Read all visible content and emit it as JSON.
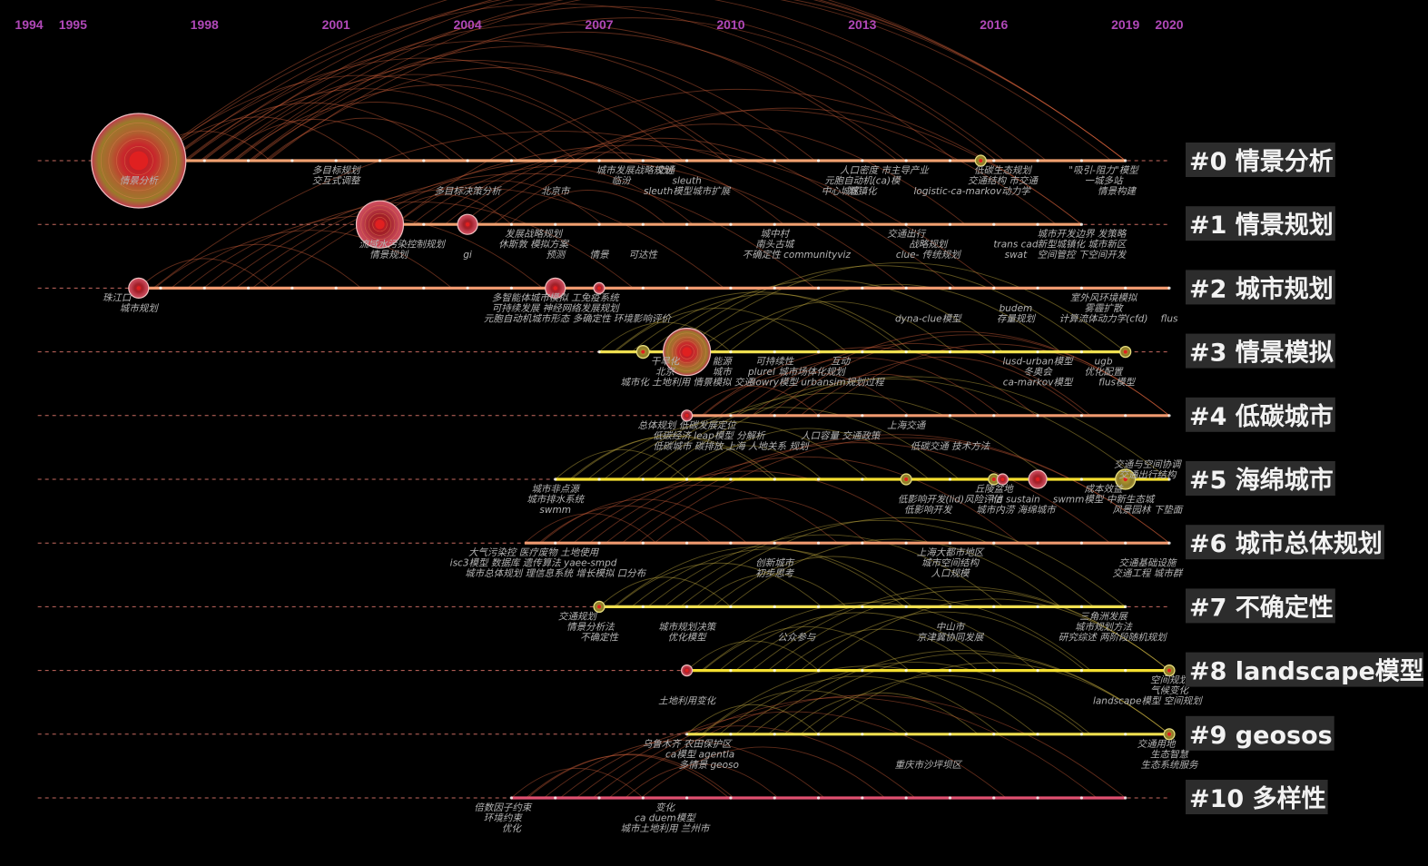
{
  "chart_data": {
    "type": "timeline",
    "x_range": [
      1994,
      2020
    ],
    "years": [
      "1994",
      "1995",
      "1998",
      "2001",
      "2004",
      "2007",
      "2010",
      "2013",
      "2016",
      "2019",
      "2020"
    ],
    "clusters": [
      {
        "id": 0,
        "label": "#0 情景分析",
        "start": 1994.2,
        "end": 2019,
        "nodes": [
          {
            "year": 1996.5,
            "size": 52,
            "kind": "big"
          },
          {
            "year": 2015.7,
            "size": 6,
            "kind": "gold"
          }
        ],
        "terms": [
          {
            "year": 1996.5,
            "row": 2,
            "text": "情景分析"
          },
          {
            "year": 2001.0,
            "row": 1,
            "text": "多目标规划"
          },
          {
            "year": 2001.0,
            "row": 2,
            "text": "交互式调整"
          },
          {
            "year": 2004.0,
            "row": 3,
            "text": "多目标决策分析"
          },
          {
            "year": 2007.8,
            "row": 1,
            "text": "城市发展战略规划"
          },
          {
            "year": 2008.5,
            "row": 1,
            "text": "交通"
          },
          {
            "year": 2007.5,
            "row": 2,
            "text": "临汾"
          },
          {
            "year": 2009.0,
            "row": 2,
            "text": "sleuth"
          },
          {
            "year": 2009.0,
            "row": 3,
            "text": "sleuth模型城市扩展"
          },
          {
            "year": 2006.0,
            "row": 3,
            "text": "北京市"
          },
          {
            "year": 2013.5,
            "row": 1,
            "text": "人口密度 市主导产业"
          },
          {
            "year": 2016.2,
            "row": 1,
            "text": "低碳生态规划"
          },
          {
            "year": 2013.0,
            "row": 2,
            "text": "元胞自动机(ca)模"
          },
          {
            "year": 2016.2,
            "row": 2,
            "text": "交通结构 市交通"
          },
          {
            "year": 2012.5,
            "row": 3,
            "text": "中心城区"
          },
          {
            "year": 2013.0,
            "row": 3,
            "text": "城镇化"
          },
          {
            "year": 2015.5,
            "row": 3,
            "text": "logistic-ca-markov动力学"
          },
          {
            "year": 2018.5,
            "row": 1,
            "text": "\"吸引-阻力\"模型"
          },
          {
            "year": 2018.5,
            "row": 2,
            "text": "一城多站"
          },
          {
            "year": 2018.8,
            "row": 3,
            "text": "情景构建"
          }
        ]
      },
      {
        "id": 1,
        "label": "#1 情景规划",
        "start": 1994.2,
        "end": 2018,
        "nodes": [
          {
            "year": 2002.0,
            "size": 26,
            "kind": "ring"
          },
          {
            "year": 2004.0,
            "size": 11,
            "kind": "ring"
          }
        ],
        "terms": [
          {
            "year": 2002.5,
            "row": 2,
            "text": "流域水污染控制规划"
          },
          {
            "year": 2002.2,
            "row": 3,
            "text": "情景规划"
          },
          {
            "year": 2004.0,
            "row": 3,
            "text": "gi"
          },
          {
            "year": 2005.5,
            "row": 1,
            "text": "发展战略规划"
          },
          {
            "year": 2005.5,
            "row": 2,
            "text": "休斯敦  模拟方案"
          },
          {
            "year": 2006.0,
            "row": 3,
            "text": "预测"
          },
          {
            "year": 2007.0,
            "row": 3,
            "text": "情景"
          },
          {
            "year": 2008.0,
            "row": 3,
            "text": "可达性"
          },
          {
            "year": 2011.0,
            "row": 1,
            "text": "城中村"
          },
          {
            "year": 2011.0,
            "row": 2,
            "text": "南头古城"
          },
          {
            "year": 2011.5,
            "row": 3,
            "text": "不确定性 communityviz"
          },
          {
            "year": 2014.0,
            "row": 1,
            "text": "交通出行"
          },
          {
            "year": 2014.5,
            "row": 2,
            "text": "战略规划"
          },
          {
            "year": 2014.5,
            "row": 3,
            "text": "clue-     传统规划"
          },
          {
            "year": 2016.5,
            "row": 2,
            "text": "trans cad"
          },
          {
            "year": 2016.5,
            "row": 3,
            "text": "swat"
          },
          {
            "year": 2018.0,
            "row": 1,
            "text": "城市开发边界 发策略"
          },
          {
            "year": 2018.0,
            "row": 2,
            "text": "新型城镇化 城市新区"
          },
          {
            "year": 2018.0,
            "row": 3,
            "text": "空间管控 下空间开发"
          }
        ]
      },
      {
        "id": 2,
        "label": "#2 城市规划",
        "start": 1994.2,
        "end": 2020,
        "nodes": [
          {
            "year": 1996.5,
            "size": 11,
            "kind": "ring"
          },
          {
            "year": 2006.0,
            "size": 11,
            "kind": "ring"
          },
          {
            "year": 2007.0,
            "size": 6,
            "kind": "ring"
          }
        ],
        "terms": [
          {
            "year": 1996.0,
            "row": 1,
            "text": "珠江口"
          },
          {
            "year": 1996.5,
            "row": 2,
            "text": "城市规划"
          },
          {
            "year": 2006.0,
            "row": 1,
            "text": "多智能体城市模拟 工免疫系统"
          },
          {
            "year": 2006.0,
            "row": 2,
            "text": "可持续发展 神经网络发展规划"
          },
          {
            "year": 2006.5,
            "row": 3,
            "text": "元胞自动机城市形态 多确定性 环境影响评价"
          },
          {
            "year": 2014.5,
            "row": 3,
            "text": "dyna-clue模型"
          },
          {
            "year": 2016.5,
            "row": 2,
            "text": "budem"
          },
          {
            "year": 2016.5,
            "row": 3,
            "text": "存量规划"
          },
          {
            "year": 2018.5,
            "row": 1,
            "text": "室外风环境模拟"
          },
          {
            "year": 2018.5,
            "row": 2,
            "text": "雾霾扩散"
          },
          {
            "year": 2018.5,
            "row": 3,
            "text": "计算流体动力学(cfd)"
          },
          {
            "year": 2020.0,
            "row": 3,
            "text": "flus"
          }
        ]
      },
      {
        "id": 3,
        "label": "#3 情景模拟",
        "start": 1994.2,
        "end": 2019,
        "nodes": [
          {
            "year": 2008.0,
            "size": 7,
            "kind": "gold"
          },
          {
            "year": 2009.0,
            "size": 26,
            "kind": "big"
          },
          {
            "year": 2019.0,
            "size": 6,
            "kind": "gold"
          }
        ],
        "terms": [
          {
            "year": 2008.5,
            "row": 1,
            "text": "干旱化"
          },
          {
            "year": 2008.5,
            "row": 2,
            "text": "北京"
          },
          {
            "year": 2009.8,
            "row": 1,
            "text": "能源"
          },
          {
            "year": 2009.8,
            "row": 2,
            "text": "城市"
          },
          {
            "year": 2009.0,
            "row": 3,
            "text": "城市化  土地利用 情景模拟  交通"
          },
          {
            "year": 2011.0,
            "row": 1,
            "text": "可持续性"
          },
          {
            "year": 2011.5,
            "row": 2,
            "text": "plurel 城市场体化规划"
          },
          {
            "year": 2012.0,
            "row": 3,
            "text": "lowry模型 urbansim规划过程"
          },
          {
            "year": 2012.5,
            "row": 1,
            "text": "互动"
          },
          {
            "year": 2017.0,
            "row": 1,
            "text": "lusd-urban模型"
          },
          {
            "year": 2017.0,
            "row": 2,
            "text": "冬奥会"
          },
          {
            "year": 2017.0,
            "row": 3,
            "text": "ca-markov模型"
          },
          {
            "year": 2018.5,
            "row": 1,
            "text": "ugb"
          },
          {
            "year": 2018.5,
            "row": 2,
            "text": "优化配置"
          },
          {
            "year": 2018.8,
            "row": 3,
            "text": "flus模型"
          }
        ]
      },
      {
        "id": 4,
        "label": "#4 低碳城市",
        "start": 1994.2,
        "end": 2020,
        "nodes": [
          {
            "year": 2009.0,
            "size": 6,
            "kind": "ring"
          }
        ],
        "terms": [
          {
            "year": 2009.0,
            "row": 1,
            "text": "总体规划   低碳发展定位"
          },
          {
            "year": 2009.5,
            "row": 2,
            "text": "低碳经济   leap模型 分解析"
          },
          {
            "year": 2010.0,
            "row": 3,
            "text": "低碳城市  碳排放  上海   人地关系  规划"
          },
          {
            "year": 2012.5,
            "row": 2,
            "text": "人口容量 交通政策"
          },
          {
            "year": 2014.0,
            "row": 1,
            "text": "上海交通"
          },
          {
            "year": 2015.0,
            "row": 3,
            "text": "低碳交通 技术方法"
          }
        ]
      },
      {
        "id": 5,
        "label": "#5 海绵城市",
        "start": 1994.2,
        "end": 2020,
        "nodes": [
          {
            "year": 2014.0,
            "size": 6,
            "kind": "gold"
          },
          {
            "year": 2016.0,
            "size": 6,
            "kind": "gold"
          },
          {
            "year": 2016.2,
            "size": 6,
            "kind": "ring"
          },
          {
            "year": 2017.0,
            "size": 10,
            "kind": "ring"
          },
          {
            "year": 2019.0,
            "size": 11,
            "kind": "gold"
          }
        ],
        "terms": [
          {
            "year": 2006.0,
            "row": 1,
            "text": "城市非点源"
          },
          {
            "year": 2006.0,
            "row": 2,
            "text": "城市排水系统"
          },
          {
            "year": 2006.0,
            "row": 3,
            "text": "swmm"
          },
          {
            "year": 2015.0,
            "row": 2,
            "text": "低影响开发(lid)风险评估"
          },
          {
            "year": 2014.5,
            "row": 3,
            "text": "低影响开发"
          },
          {
            "year": 2016.0,
            "row": 1,
            "text": "丘陵盆地"
          },
          {
            "year": 2016.5,
            "row": 2,
            "text": "lid  sustain"
          },
          {
            "year": 2016.5,
            "row": 3,
            "text": "城市内涝 海绵城市"
          },
          {
            "year": 2018.5,
            "row": 1,
            "text": "成本效益"
          },
          {
            "year": 2018.5,
            "row": 2,
            "text": "swmm模型  中新生态城"
          },
          {
            "year": 2019.5,
            "row": 3,
            "text": "风景园林  下垫面"
          },
          {
            "year": 2019.5,
            "row": -2,
            "text": "交通与空间协调"
          },
          {
            "year": 2019.5,
            "row": -1,
            "text": "交通出行结构"
          }
        ]
      },
      {
        "id": 6,
        "label": "#6 城市总体规划",
        "start": 1994.2,
        "end": 2020,
        "nodes": [],
        "terms": [
          {
            "year": 2005.5,
            "row": 1,
            "text": "大气污染控 医疗废物   土地使用"
          },
          {
            "year": 2005.5,
            "row": 2,
            "text": "isc3模型 数据库 遗传算法 yaee-smpd"
          },
          {
            "year": 2006.0,
            "row": 3,
            "text": "城市总体规划 理信息系统 增长模拟 口分布"
          },
          {
            "year": 2011.0,
            "row": 2,
            "text": "创新城市"
          },
          {
            "year": 2011.0,
            "row": 3,
            "text": "初步思考"
          },
          {
            "year": 2015.0,
            "row": 1,
            "text": "上海大都市地区"
          },
          {
            "year": 2015.0,
            "row": 2,
            "text": "城市空间结构"
          },
          {
            "year": 2015.0,
            "row": 3,
            "text": "人口规模"
          },
          {
            "year": 2019.5,
            "row": 2,
            "text": "交通基础设施"
          },
          {
            "year": 2019.5,
            "row": 3,
            "text": "交通工程  城市群"
          }
        ]
      },
      {
        "id": 7,
        "label": "#7 不确定性",
        "start": 1994.2,
        "end": 2019,
        "nodes": [
          {
            "year": 2007.0,
            "size": 6,
            "kind": "gold"
          }
        ],
        "terms": [
          {
            "year": 2006.5,
            "row": 1,
            "text": "交通规划"
          },
          {
            "year": 2006.8,
            "row": 2,
            "text": "情景分析法"
          },
          {
            "year": 2007.0,
            "row": 3,
            "text": "不确定性"
          },
          {
            "year": 2009.0,
            "row": 2,
            "text": "城市规划决策"
          },
          {
            "year": 2009.0,
            "row": 3,
            "text": "优化模型"
          },
          {
            "year": 2011.5,
            "row": 3,
            "text": "公众参与"
          },
          {
            "year": 2015.0,
            "row": 2,
            "text": "中山市"
          },
          {
            "year": 2015.0,
            "row": 3,
            "text": "京津冀协同发展"
          },
          {
            "year": 2018.5,
            "row": 1,
            "text": "三角洲发展"
          },
          {
            "year": 2018.5,
            "row": 2,
            "text": "城市规划方法"
          },
          {
            "year": 2018.7,
            "row": 3,
            "text": "研究综述 两阶段随机规划"
          }
        ]
      },
      {
        "id": 8,
        "label": "#8 landscape模型",
        "start": 1994.2,
        "end": 2020,
        "nodes": [
          {
            "year": 2009.0,
            "size": 6,
            "kind": "ring"
          },
          {
            "year": 2020.0,
            "size": 6,
            "kind": "gold"
          }
        ],
        "terms": [
          {
            "year": 2009.0,
            "row": 3,
            "text": "土地利用变化"
          },
          {
            "year": 2020.0,
            "row": 1,
            "text": "空间规划"
          },
          {
            "year": 2020.0,
            "row": 2,
            "text": "气候变化"
          },
          {
            "year": 2019.5,
            "row": 3,
            "text": "landscape模型 空间规划"
          }
        ]
      },
      {
        "id": 9,
        "label": "#9 geosos",
        "start": 1994.2,
        "end": 2020,
        "nodes": [
          {
            "year": 2020.0,
            "size": 6,
            "kind": "gold"
          }
        ],
        "terms": [
          {
            "year": 2009.0,
            "row": 1,
            "text": "乌鲁木齐 农田保护区"
          },
          {
            "year": 2009.3,
            "row": 2,
            "text": "ca模型 agentla"
          },
          {
            "year": 2009.5,
            "row": 3,
            "text": "多情景    geoso"
          },
          {
            "year": 2014.5,
            "row": 3,
            "text": "重庆市沙坪坝区"
          },
          {
            "year": 2019.7,
            "row": 1,
            "text": "交通用地"
          },
          {
            "year": 2020.0,
            "row": 2,
            "text": "生态智慧"
          },
          {
            "year": 2020.0,
            "row": 3,
            "text": "生态系统服务"
          }
        ]
      },
      {
        "id": 10,
        "label": "#10 多样性",
        "start": 1994.2,
        "end": 2019,
        "nodes": [],
        "terms": [
          {
            "year": 2004.8,
            "row": 1,
            "text": "倍数因子约束"
          },
          {
            "year": 2004.8,
            "row": 2,
            "text": "环境约束"
          },
          {
            "year": 2005.0,
            "row": 3,
            "text": "优化"
          },
          {
            "year": 2008.5,
            "row": 1,
            "text": "变化"
          },
          {
            "year": 2008.5,
            "row": 2,
            "text": "ca    duem模型"
          },
          {
            "year": 2008.5,
            "row": 3,
            "text": "城市土地利用 兰州市"
          }
        ]
      }
    ]
  }
}
